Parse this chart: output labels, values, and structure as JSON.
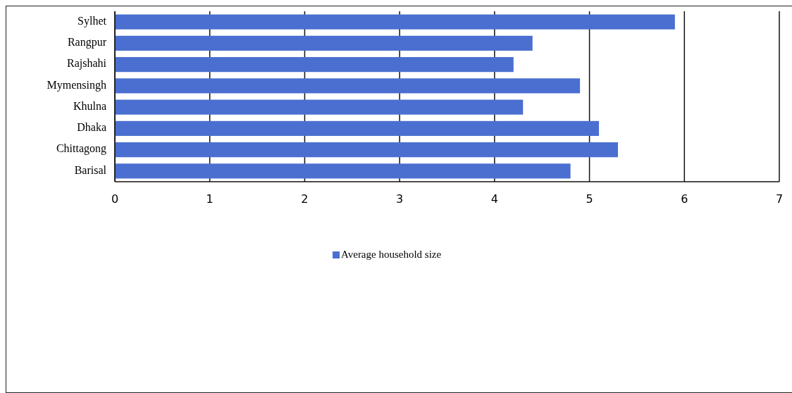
{
  "chart_data": {
    "type": "bar",
    "orientation": "horizontal",
    "categories": [
      "Sylhet",
      "Rangpur",
      "Rajshahi",
      "Mymensingh",
      "Khulna",
      "Dhaka",
      "Chittagong",
      "Barisal"
    ],
    "series": [
      {
        "name": "Average household size",
        "color": "#4a6fd0",
        "values": [
          5.9,
          4.4,
          4.2,
          4.9,
          4.3,
          5.1,
          5.3,
          4.8
        ]
      }
    ],
    "xlim": [
      0,
      7
    ],
    "xticks": [
      0,
      1,
      2,
      3,
      4,
      5,
      6,
      7
    ],
    "grid": "x",
    "legend": "bottom"
  }
}
